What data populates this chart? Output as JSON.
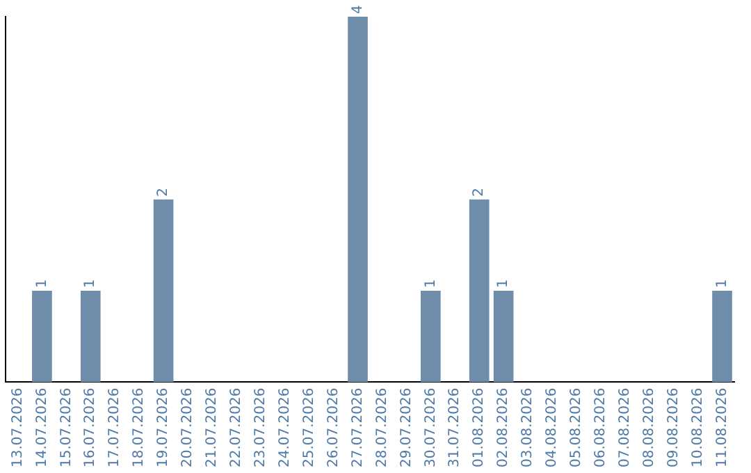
{
  "chart_data": {
    "type": "bar",
    "categories": [
      "13.07.2026",
      "14.07.2026",
      "15.07.2026",
      "16.07.2026",
      "17.07.2026",
      "18.07.2026",
      "19.07.2026",
      "20.07.2026",
      "21.07.2026",
      "22.07.2026",
      "23.07.2026",
      "24.07.2026",
      "25.07.2026",
      "26.07.2026",
      "27.07.2026",
      "28.07.2026",
      "29.07.2026",
      "30.07.2026",
      "31.07.2026",
      "01.08.2026",
      "02.08.2026",
      "03.08.2026",
      "04.08.2026",
      "05.08.2026",
      "06.08.2026",
      "07.08.2026",
      "08.08.2026",
      "09.08.2026",
      "10.08.2026",
      "11.08.2026"
    ],
    "values": [
      0,
      1,
      0,
      1,
      0,
      0,
      2,
      0,
      0,
      0,
      0,
      0,
      0,
      0,
      4,
      0,
      0,
      1,
      0,
      2,
      1,
      0,
      0,
      0,
      0,
      0,
      0,
      0,
      0,
      1
    ],
    "value_labels": [
      null,
      "1",
      null,
      "1",
      null,
      null,
      "2",
      null,
      null,
      null,
      null,
      null,
      null,
      null,
      "4",
      null,
      null,
      "1",
      null,
      "2",
      "1",
      null,
      null,
      null,
      null,
      null,
      null,
      null,
      null,
      "1"
    ],
    "color": "#6d8dab",
    "ylim": [
      0,
      4
    ],
    "tick_labels": "x",
    "grid": false,
    "legend": false
  }
}
